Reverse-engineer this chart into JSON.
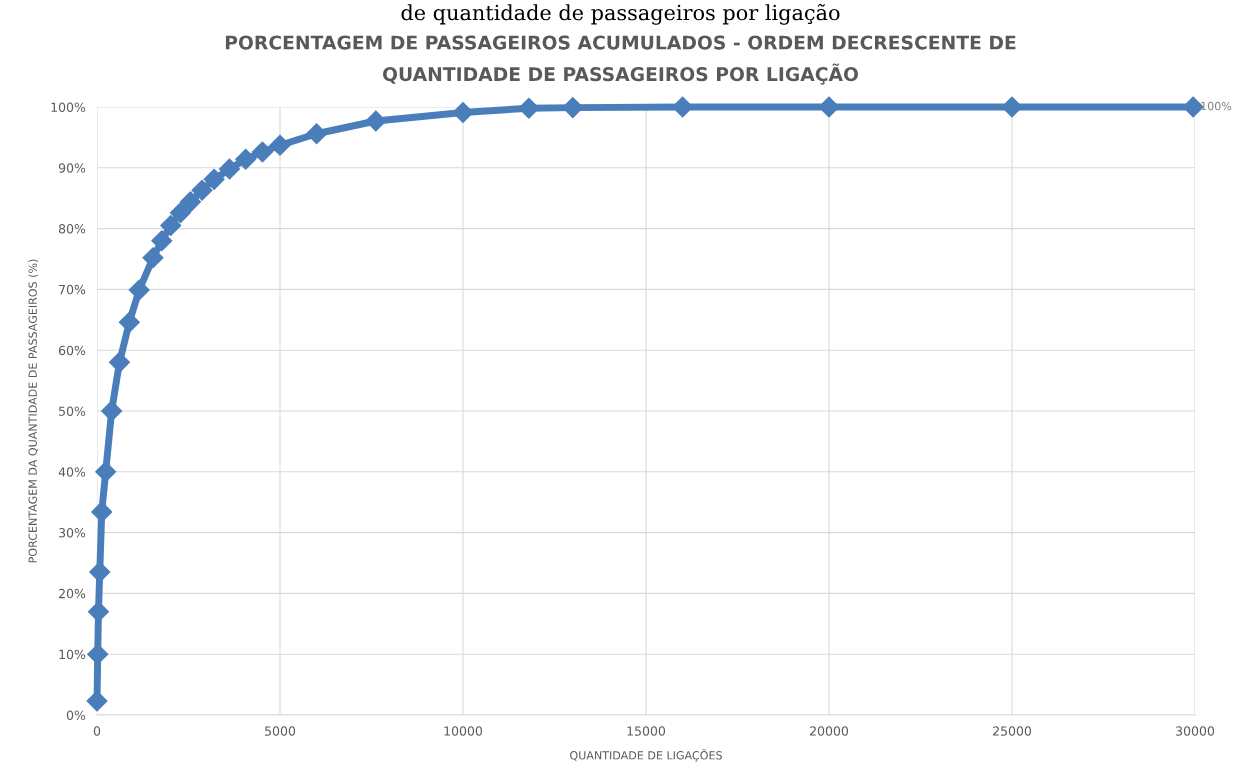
{
  "chart_data": {
    "type": "line",
    "title": "PORCENTAGEM DE PASSAGEIROS ACUMULADOS - ORDEM DECRESCENTE DE\nQUANTIDADE DE PASSAGEIROS POR LIGAÇÃO",
    "xlabel": "QUANTIDADE DE LIGAÇÕES",
    "ylabel": "PORCENTAGEM DA QUANTIDADE DE PASSAGEIROS (%)",
    "annotations": [
      "de quantidade de passageiros por ligação",
      {
        "text": "100%",
        "x": 29950,
        "y": 100
      }
    ],
    "series": [
      {
        "color": "#4a7ebb",
        "x": [
          0,
          20,
          40,
          75,
          130,
          237,
          400,
          614,
          884,
          1153,
          1530,
          1770,
          2015,
          2280,
          2554,
          2870,
          3200,
          3620,
          4063,
          4520,
          5000,
          6000,
          7619,
          10000,
          11800,
          13000,
          16000,
          20000,
          25000,
          29950
        ],
        "values": [
          2.3,
          10,
          17,
          23.5,
          33.4,
          40,
          50,
          58,
          64.6,
          69.9,
          75.2,
          78,
          80.5,
          82.6,
          84.4,
          86.3,
          88.1,
          89.8,
          91.4,
          92.6,
          93.7,
          95.6,
          97.7,
          99.1,
          99.8,
          99.9,
          100,
          100,
          100,
          100
        ]
      }
    ],
    "marker": "diamond",
    "grid": true,
    "xlim": [
      0,
      30000
    ],
    "xticks": [
      0,
      5000,
      10000,
      15000,
      20000,
      25000,
      30000
    ],
    "ylim": [
      0,
      100
    ],
    "yticks": [
      {
        "value": 0,
        "label": "0%"
      },
      {
        "value": 10,
        "label": "10%"
      },
      {
        "value": 20,
        "label": "20%"
      },
      {
        "value": 30,
        "label": "30%"
      },
      {
        "value": 40,
        "label": "40%"
      },
      {
        "value": 50,
        "label": "50%"
      },
      {
        "value": 60,
        "label": "60%"
      },
      {
        "value": 70,
        "label": "70%"
      },
      {
        "value": 80,
        "label": "80%"
      },
      {
        "value": 90,
        "label": "90%"
      },
      {
        "value": 100,
        "label": "100%"
      }
    ]
  }
}
